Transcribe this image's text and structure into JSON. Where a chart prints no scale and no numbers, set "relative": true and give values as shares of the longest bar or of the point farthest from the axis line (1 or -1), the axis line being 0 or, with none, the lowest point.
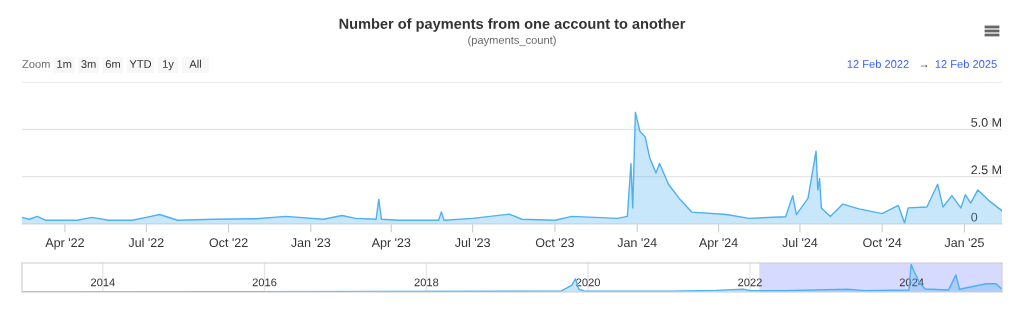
{
  "chart_data": [
    {
      "type": "area",
      "title": "Number of payments from one account to another",
      "subtitle": "(payments_count)",
      "annotations": [
        "Zoom",
        "1m",
        "3m",
        "6m",
        "YTD",
        "1y",
        "All",
        "12 Feb 2022",
        "→",
        "12 Feb 2025"
      ],
      "color": "#4db0f2",
      "grid": "y",
      "xlim": [
        "2022-02-12",
        "2025-02-12"
      ],
      "ylim": [
        0,
        7500000
      ],
      "xticks": [
        {
          "value": "2022-04-01",
          "label": "Apr '22"
        },
        {
          "value": "2022-07-01",
          "label": "Jul '22"
        },
        {
          "value": "2022-10-01",
          "label": "Oct '22"
        },
        {
          "value": "2023-01-01",
          "label": "Jan '23"
        },
        {
          "value": "2023-04-01",
          "label": "Apr '23"
        },
        {
          "value": "2023-07-01",
          "label": "Jul '23"
        },
        {
          "value": "2023-10-01",
          "label": "Oct '23"
        },
        {
          "value": "2024-01-01",
          "label": "Jan '24"
        },
        {
          "value": "2024-04-01",
          "label": "Apr '24"
        },
        {
          "value": "2024-07-01",
          "label": "Jul '24"
        },
        {
          "value": "2024-10-01",
          "label": "Oct '24"
        },
        {
          "value": "2025-01-01",
          "label": "Jan '25"
        }
      ],
      "yticks": [
        0,
        {
          "value": 2500000,
          "label": "2.5 M"
        },
        {
          "value": 5000000,
          "label": "5.0 M"
        },
        {
          "value": 7500000,
          "label": null
        }
      ],
      "x": [
        "2022-02-12",
        "2022-02-20",
        "2022-03-01",
        "2022-03-10",
        "2022-04-15",
        "2022-05-01",
        "2022-05-20",
        "2022-06-15",
        "2022-07-01",
        "2022-07-16",
        "2022-08-05",
        "2022-09-15",
        "2022-11-01",
        "2022-12-04",
        "2023-01-15",
        "2023-02-05",
        "2023-02-20",
        "2023-03-15",
        "2023-03-18",
        "2023-03-21",
        "2023-04-10",
        "2023-05-24",
        "2023-05-27",
        "2023-05-30",
        "2023-07-01",
        "2023-08-11",
        "2023-08-25",
        "2023-10-01",
        "2023-10-20",
        "2023-12-10",
        "2023-12-21",
        "2023-12-25",
        "2023-12-27",
        "2023-12-30",
        "2024-01-04",
        "2024-01-10",
        "2024-01-15",
        "2024-01-22",
        "2024-01-26",
        "2024-02-05",
        "2024-02-17",
        "2024-03-02",
        "2024-04-10",
        "2024-05-05",
        "2024-06-15",
        "2024-06-23",
        "2024-06-27",
        "2024-07-10",
        "2024-07-16",
        "2024-07-19",
        "2024-07-21",
        "2024-07-23",
        "2024-07-25",
        "2024-08-04",
        "2024-08-18",
        "2024-09-05",
        "2024-10-01",
        "2024-10-19",
        "2024-10-26",
        "2024-10-30",
        "2024-11-20",
        "2024-12-02",
        "2024-12-08",
        "2024-12-18",
        "2024-12-28",
        "2025-01-02",
        "2025-01-08",
        "2025-01-16",
        "2025-01-28",
        "2025-02-12"
      ],
      "values": [
        350000,
        250000,
        400000,
        200000,
        200000,
        350000,
        200000,
        200000,
        350000,
        500000,
        200000,
        250000,
        280000,
        400000,
        250000,
        450000,
        300000,
        250000,
        1300000,
        250000,
        200000,
        200000,
        640000,
        200000,
        300000,
        520000,
        250000,
        200000,
        400000,
        300000,
        400000,
        3200000,
        850000,
        5900000,
        4900000,
        4600000,
        3500000,
        2700000,
        3200000,
        2100000,
        1350000,
        630000,
        500000,
        300000,
        380000,
        1500000,
        500000,
        1350000,
        3000000,
        3850000,
        1800000,
        2400000,
        850000,
        400000,
        1050000,
        800000,
        550000,
        980000,
        50000,
        850000,
        900000,
        2100000,
        900000,
        1500000,
        850000,
        1550000,
        1100000,
        1800000,
        1250000,
        700000
      ]
    },
    {
      "type": "area",
      "relative": true,
      "color": "#4db0f2",
      "grid": "x",
      "tick_labels": "x",
      "xlim": [
        "2013-01-01",
        "2025-02-12"
      ],
      "xticks": [
        {
          "value": "2014-01-01",
          "label": "2014"
        },
        {
          "value": "2016-01-01",
          "label": "2016"
        },
        {
          "value": "2018-01-01",
          "label": "2018"
        },
        {
          "value": "2020-01-01",
          "label": "2020"
        },
        {
          "value": "2022-01-01",
          "label": "2022"
        },
        {
          "value": "2024-01-01",
          "label": "2024"
        }
      ],
      "bands": [
        {
          "axis": "x",
          "from": "2022-02-12",
          "to": "2025-02-12",
          "color": "#ccd1ff"
        }
      ],
      "x": [
        "2013-01-01",
        "2015-06-01",
        "2017-06-01",
        "2019-09-01",
        "2019-10-20",
        "2019-11-05",
        "2019-11-20",
        "2019-12-15",
        "2021-01-01",
        "2021-08-01",
        "2021-12-01",
        "2022-01-01",
        "2022-06-01",
        "2023-03-18",
        "2023-06-01",
        "2023-12-20",
        "2023-12-30",
        "2024-01-10",
        "2024-02-05",
        "2024-03-02",
        "2024-06-15",
        "2024-07-19",
        "2024-08-04",
        "2024-12-02",
        "2025-01-16",
        "2025-02-12"
      ],
      "values": [
        0.0,
        0.01,
        0.02,
        0.03,
        0.25,
        0.48,
        0.1,
        0.03,
        0.03,
        0.06,
        0.1,
        0.05,
        0.05,
        0.1,
        0.05,
        0.07,
        1.0,
        0.78,
        0.35,
        0.11,
        0.07,
        0.62,
        0.1,
        0.3,
        0.3,
        0.1
      ]
    }
  ]
}
